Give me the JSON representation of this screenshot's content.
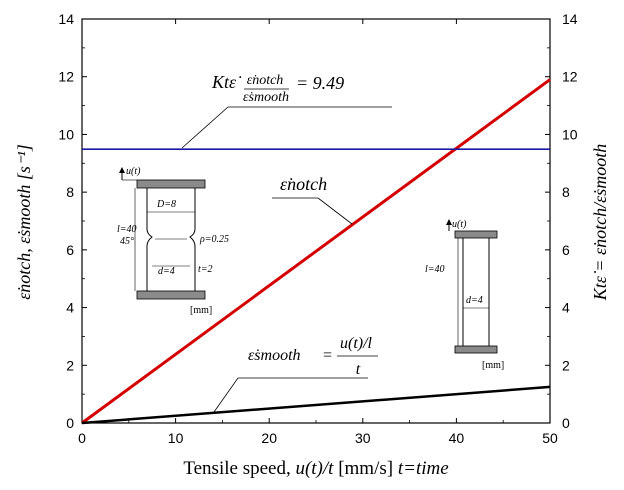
{
  "chart_data": {
    "type": "line",
    "xlabel": "Tensile speed, u(t)/t [mm/s] t=time",
    "xlabel_parts": {
      "main": "Tensile speed, ",
      "math": "u(t)/t",
      "unit": " [mm/s] ",
      "note": "t=time"
    },
    "ylabel_left": "ε̇notch, ε̇smooth [s⁻¹]",
    "ylabel_right": "Ktε̇ = ε̇notch/ε̇smooth",
    "xlim": [
      0,
      50
    ],
    "ylim_left": [
      0,
      14
    ],
    "ylim_right": [
      0,
      14
    ],
    "x_ticks": [
      "0",
      "10",
      "20",
      "30",
      "40",
      "50"
    ],
    "y_ticks": [
      "0",
      "2",
      "4",
      "6",
      "8",
      "10",
      "12",
      "14"
    ],
    "series": [
      {
        "name": "ε̇notch",
        "color": "#d40000",
        "x": [
          0,
          50
        ],
        "y": [
          0,
          11.9
        ]
      },
      {
        "name": "ε̇smooth",
        "color": "#000000",
        "x": [
          0,
          50
        ],
        "y": [
          0,
          1.25
        ]
      },
      {
        "name": "Ktε̇",
        "color": "#1a1aa6",
        "axis": "right",
        "x": [
          0,
          50
        ],
        "y": [
          9.49,
          9.49
        ]
      }
    ],
    "annotations": {
      "ratio_eq": "Ktε̇ = ε̇notch / ε̇smooth = 9.49",
      "ratio_lhs": "Ktε̇",
      "ratio_num": "ε̇notch",
      "ratio_den": "ε̇smooth",
      "ratio_val": "= 9.49",
      "notch_label": "ε̇notch",
      "smooth_lhs": "ε̇smooth",
      "smooth_eq": "=",
      "smooth_num": "u(t)/l",
      "smooth_den": "t"
    },
    "specimen_notched": {
      "u": "u(t)",
      "D": "D=8",
      "l": "l=40",
      "angle": "45°",
      "rho": "ρ=0.25",
      "d": "d=4",
      "t": "t=2",
      "unit": "[mm]"
    },
    "specimen_smooth": {
      "u": "u(t)",
      "l": "l=40",
      "d": "d=4",
      "unit": "[mm]"
    }
  }
}
